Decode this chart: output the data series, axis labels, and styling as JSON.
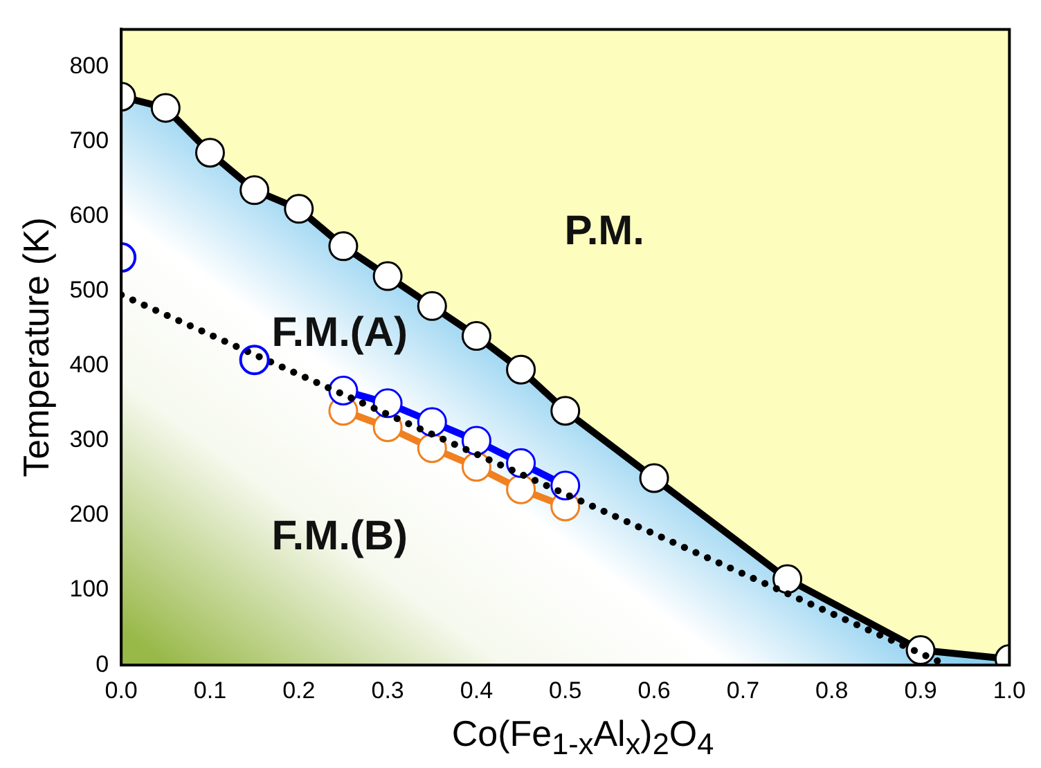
{
  "chart_data": {
    "type": "line",
    "xlabel": "Co(Fe$_{1-x}$Al$_{x}$)$_{2}$O$_{4}$",
    "ylabel": "Temperature (K)",
    "xlim": [
      0,
      1
    ],
    "xticks": [
      {
        "value": 0,
        "label": "0.0"
      },
      0.1,
      0.2,
      0.3,
      0.4,
      0.5,
      0.6,
      0.7,
      0.8,
      0.9,
      {
        "value": 1,
        "label": "1.0"
      }
    ],
    "ylim": [
      0,
      850
    ],
    "yticks": [
      0,
      100,
      200,
      300,
      400,
      500,
      600,
      700,
      800
    ],
    "grid": false,
    "legend": false,
    "marker": "circle",
    "series": [
      {
        "type": "area",
        "color": "#000000",
        "x": [
          0,
          0.05,
          0.1,
          0.15,
          0.2,
          0.25,
          0.3,
          0.35,
          0.4,
          0.45,
          0.5,
          0.6,
          0.75,
          0.9,
          1.0
        ],
        "values": [
          760,
          745,
          685,
          635,
          610,
          560,
          520,
          480,
          440,
          395,
          340,
          250,
          115,
          20,
          8
        ]
      },
      {
        "line_style": "dotted",
        "marker": "none",
        "color": "#000000",
        "x": [
          0,
          0.92
        ],
        "values": [
          495,
          5
        ]
      },
      {
        "type": "scatter",
        "color": "#0000ff",
        "x": [
          0,
          0.15
        ],
        "values": [
          545,
          408
        ]
      },
      {
        "color": "#0000ff",
        "x": [
          0.25,
          0.3,
          0.35,
          0.4,
          0.45,
          0.5
        ],
        "values": [
          367,
          350,
          325,
          300,
          270,
          240
        ]
      },
      {
        "color": "#f08020",
        "x": [
          0.25,
          0.3,
          0.35,
          0.4,
          0.45,
          0.5
        ],
        "values": [
          340,
          318,
          290,
          265,
          235,
          212
        ]
      }
    ],
    "annotations": [
      "P.M.",
      "F.M.(A)",
      "F.M.(B)"
    ]
  }
}
